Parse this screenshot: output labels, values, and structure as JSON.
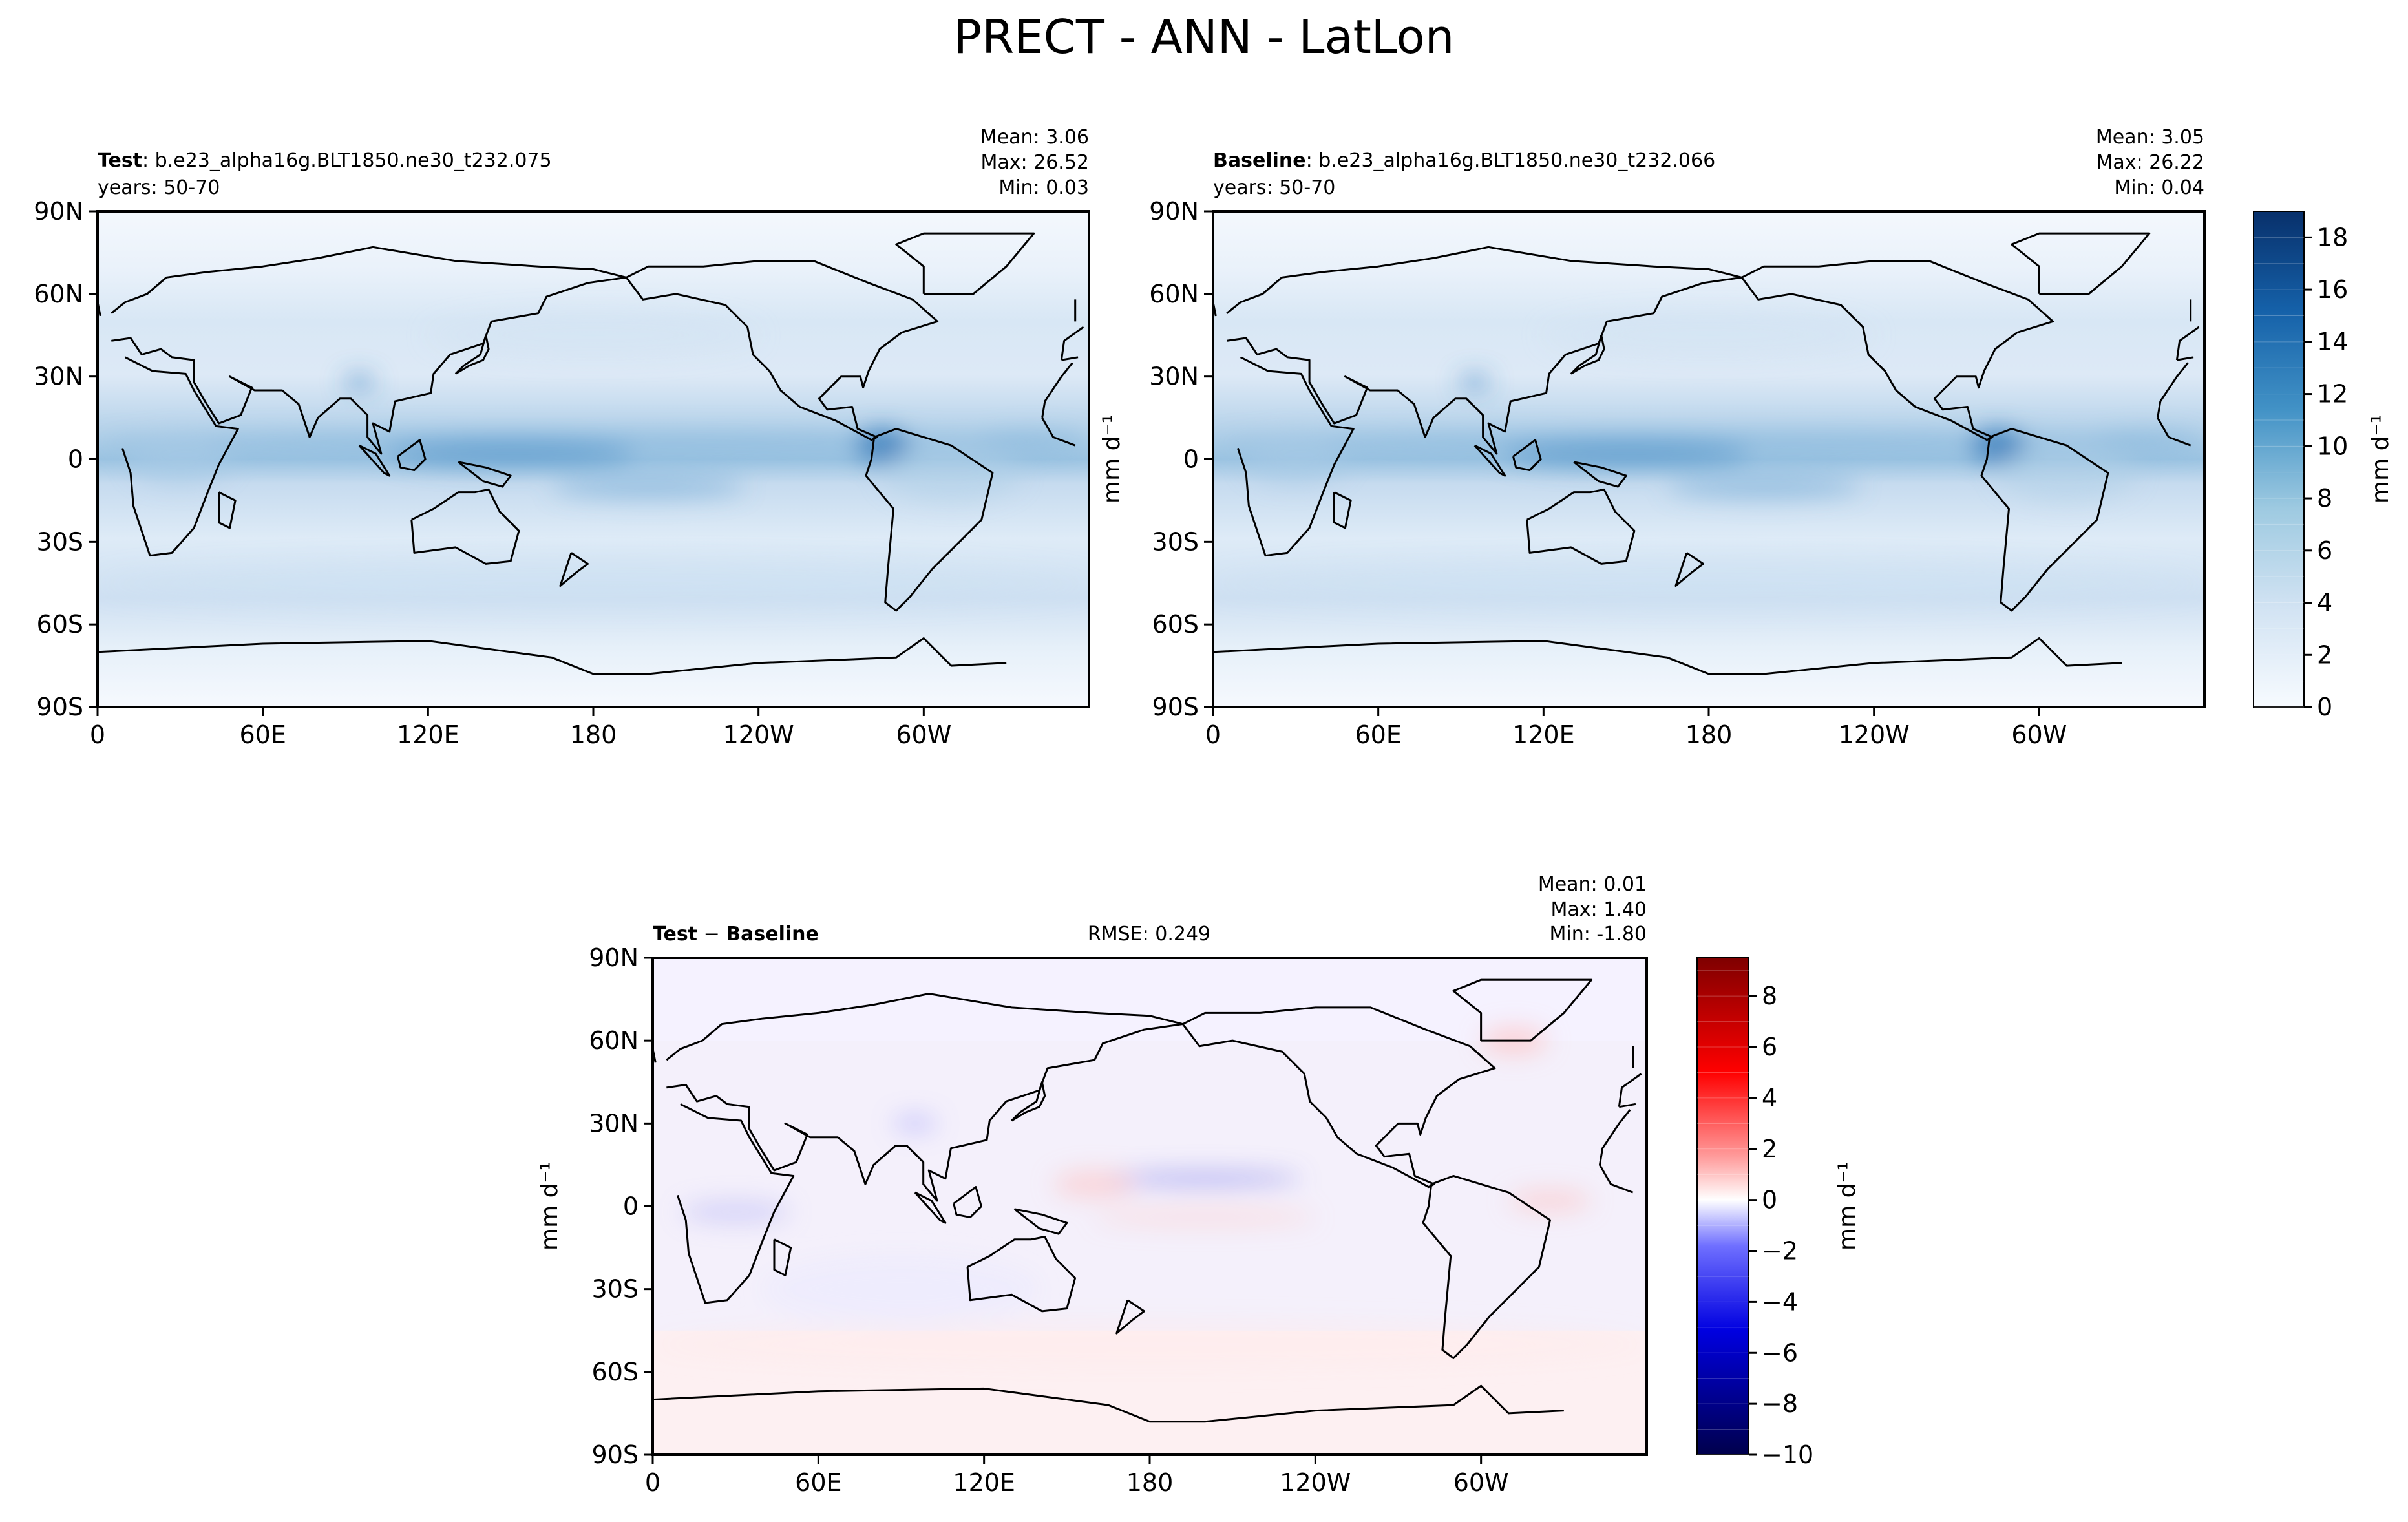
{
  "figure": {
    "title": "PRECT - ANN - LatLon"
  },
  "panels": [
    {
      "kind": "Test",
      "title_bold": "Test",
      "title_rest": ": b.e23_alpha16g.BLT1850.ne30_t232.075",
      "subtitle": "years: 50-70",
      "stats": {
        "mean": "Mean:  3.06",
        "max": "Max: 26.52",
        "min": "Min:  0.03"
      }
    },
    {
      "kind": "Baseline",
      "title_bold": "Baseline",
      "title_rest": ": b.e23_alpha16g.BLT1850.ne30_t232.066",
      "subtitle": "years: 50-70",
      "stats": {
        "mean": "Mean:  3.05",
        "max": "Max: 26.22",
        "min": "Min:  0.04"
      }
    },
    {
      "kind": "Diff",
      "title_bold": "Test",
      "title_minus": " − ",
      "title_bold2": "Baseline",
      "rmse": "RMSE: 0.249",
      "stats": {
        "mean": "Mean:  0.01",
        "max": "Max:  1.40",
        "min": "Min: -1.80"
      }
    }
  ],
  "chart_data": [
    {
      "type": "heatmap",
      "name": "Test",
      "x_ticks": [
        "0",
        "60E",
        "120E",
        "180",
        "120W",
        "60W"
      ],
      "y_ticks": [
        "90N",
        "60N",
        "30N",
        "0",
        "30S",
        "60S",
        "90S"
      ],
      "colorbar_label": "mm d⁻¹",
      "colorbar_ticks": [
        "0",
        "2",
        "4",
        "6",
        "8",
        "10",
        "12",
        "14",
        "16",
        "18"
      ],
      "colorbar_range": [
        0,
        19
      ],
      "colormap": "Blues"
    },
    {
      "type": "heatmap",
      "name": "Baseline",
      "x_ticks": [
        "0",
        "60E",
        "120E",
        "180",
        "120W",
        "60W"
      ],
      "y_ticks": [
        "90N",
        "60N",
        "30N",
        "0",
        "30S",
        "60S",
        "90S"
      ],
      "colorbar_label": "mm d⁻¹",
      "colormap": "Blues"
    },
    {
      "type": "heatmap",
      "name": "Test - Baseline",
      "x_ticks": [
        "0",
        "60E",
        "120E",
        "180",
        "120W",
        "60W"
      ],
      "y_ticks": [
        "90N",
        "60N",
        "30N",
        "0",
        "30S",
        "60S",
        "90S"
      ],
      "colorbar_label": "mm d⁻¹",
      "colorbar_ticks": [
        "−10",
        "−8",
        "−6",
        "−4",
        "−2",
        "0",
        "2",
        "4",
        "6",
        "8"
      ],
      "colorbar_range": [
        -10,
        9.5
      ],
      "colormap": "seismic"
    }
  ],
  "colors": {
    "blues_light": "#f4f8fd",
    "blues_dark": "#08306b",
    "seismic_neg": "#00004c",
    "seismic_pos": "#7f0000",
    "diff_neutral": "#f2f2ff"
  }
}
